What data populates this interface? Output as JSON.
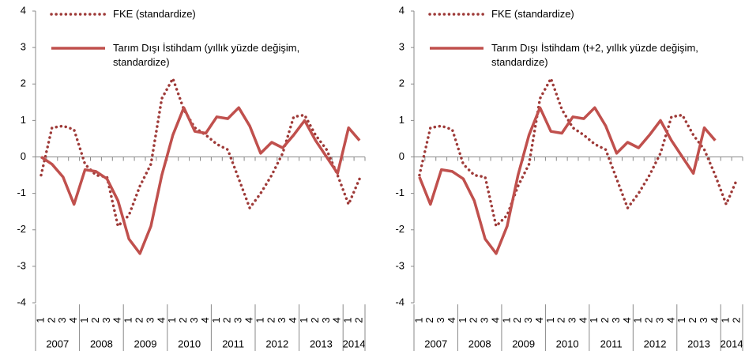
{
  "chart_data": [
    {
      "type": "line",
      "categories": [
        "1",
        "2",
        "3",
        "4",
        "1",
        "2",
        "3",
        "4",
        "1",
        "2",
        "3",
        "4",
        "1",
        "2",
        "3",
        "4",
        "1",
        "2",
        "3",
        "4",
        "1",
        "2",
        "3",
        "4",
        "1",
        "2",
        "3",
        "4",
        "1",
        "2"
      ],
      "x_groups": [
        "2007",
        "2008",
        "2009",
        "2010",
        "2011",
        "2012",
        "2013",
        "2014"
      ],
      "ylim": [
        -4,
        4
      ],
      "yticks": [
        -4,
        -3,
        -2,
        -1,
        0,
        1,
        2,
        3,
        4
      ],
      "legend": "top-left",
      "series": [
        {
          "name": "FKE (standardize)",
          "color": "#9e3a38",
          "style": "dotted",
          "values": [
            -0.5,
            0.8,
            0.85,
            0.75,
            -0.2,
            -0.5,
            -0.55,
            -1.9,
            -1.6,
            -0.8,
            -0.2,
            1.6,
            2.15,
            1.3,
            0.8,
            0.6,
            0.35,
            0.2,
            -0.6,
            -1.4,
            -1.0,
            -0.5,
            0.1,
            1.1,
            1.15,
            0.6,
            0.2,
            -0.5,
            -1.3,
            -0.6
          ]
        },
        {
          "name": "Tarım Dışı İstihdam (yıllık yüzde değişim, standardize)",
          "color": "#c0504d",
          "style": "solid",
          "values": [
            0,
            -0.2,
            -0.55,
            -1.3,
            -0.35,
            -0.4,
            -0.6,
            -1.2,
            -2.25,
            -2.65,
            -1.9,
            -0.5,
            0.6,
            1.35,
            0.7,
            0.65,
            1.1,
            1.05,
            1.35,
            0.85,
            0.1,
            0.4,
            0.25,
            0.6,
            1.0,
            0.45,
            0.0,
            -0.45,
            0.8,
            0.45
          ]
        }
      ]
    },
    {
      "type": "line",
      "categories": [
        "1",
        "2",
        "3",
        "4",
        "1",
        "2",
        "3",
        "4",
        "1",
        "2",
        "3",
        "4",
        "1",
        "2",
        "3",
        "4",
        "1",
        "2",
        "3",
        "4",
        "1",
        "2",
        "3",
        "4",
        "1",
        "2",
        "3",
        "4",
        "1",
        "2"
      ],
      "x_groups": [
        "2007",
        "2008",
        "2009",
        "2010",
        "2011",
        "2012",
        "2013",
        "2014"
      ],
      "ylim": [
        -4,
        4
      ],
      "yticks": [
        -4,
        -3,
        -2,
        -1,
        0,
        1,
        2,
        3,
        4
      ],
      "legend": "top-left",
      "series": [
        {
          "name": "FKE (standardize)",
          "color": "#9e3a38",
          "style": "dotted",
          "values": [
            -0.5,
            0.8,
            0.85,
            0.75,
            -0.2,
            -0.5,
            -0.55,
            -1.9,
            -1.6,
            -0.8,
            -0.2,
            1.6,
            2.15,
            1.3,
            0.8,
            0.6,
            0.35,
            0.2,
            -0.6,
            -1.4,
            -1.0,
            -0.5,
            0.1,
            1.1,
            1.15,
            0.6,
            0.2,
            -0.5,
            -1.3,
            -0.6
          ]
        },
        {
          "name": "Tarım Dışı İstihdam (t+2, yıllık yüzde değişim, standardize)",
          "color": "#c0504d",
          "style": "solid",
          "values": [
            -0.55,
            -1.3,
            -0.35,
            -0.4,
            -0.6,
            -1.2,
            -2.25,
            -2.65,
            -1.9,
            -0.5,
            0.6,
            1.35,
            0.7,
            0.65,
            1.1,
            1.05,
            1.35,
            0.85,
            0.1,
            0.4,
            0.25,
            0.6,
            1.0,
            0.45,
            0.0,
            -0.45,
            0.8,
            0.45,
            null,
            null
          ]
        }
      ]
    }
  ]
}
